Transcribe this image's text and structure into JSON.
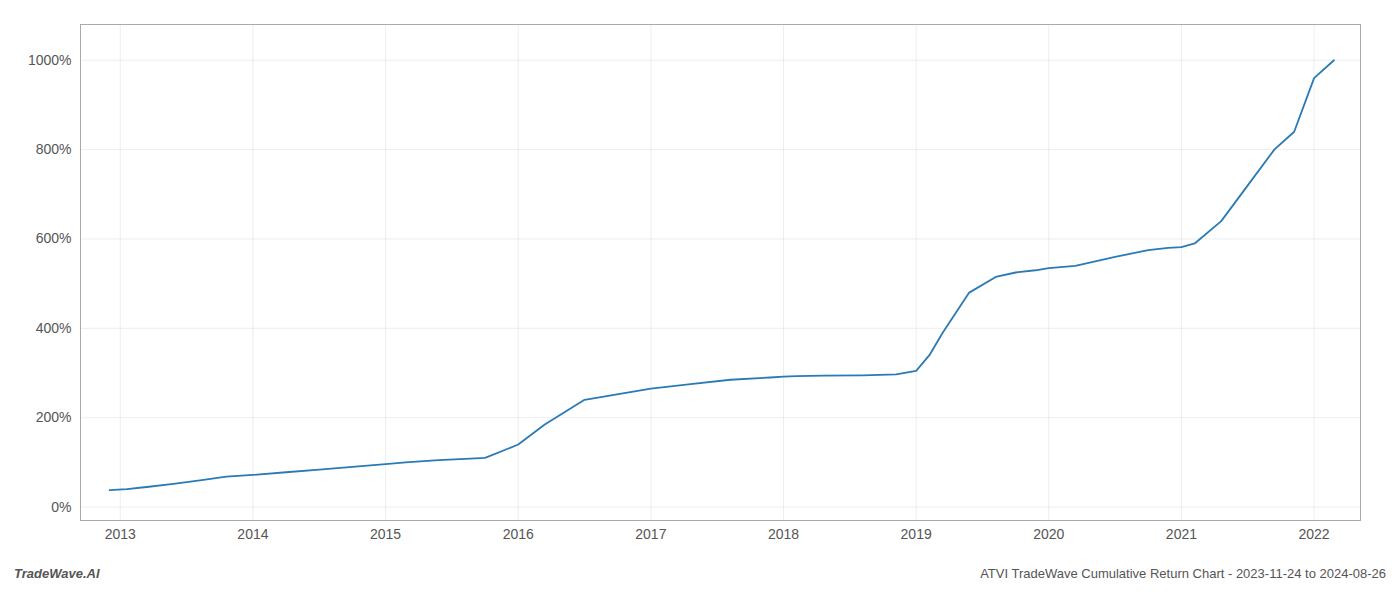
{
  "chart_data": {
    "type": "line",
    "x": [
      2012.92,
      2013.05,
      2013.2,
      2013.4,
      2013.6,
      2013.8,
      2014.0,
      2014.25,
      2014.5,
      2014.75,
      2015.0,
      2015.15,
      2015.4,
      2015.6,
      2015.75,
      2016.0,
      2016.2,
      2016.5,
      2016.8,
      2017.0,
      2017.3,
      2017.6,
      2017.9,
      2018.0,
      2018.1,
      2018.3,
      2018.6,
      2018.85,
      2019.0,
      2019.1,
      2019.2,
      2019.4,
      2019.6,
      2019.75,
      2019.9,
      2020.0,
      2020.2,
      2020.5,
      2020.75,
      2020.9,
      2021.0,
      2021.1,
      2021.3,
      2021.5,
      2021.7,
      2021.85,
      2022.0,
      2022.15
    ],
    "values": [
      38,
      40,
      45,
      52,
      60,
      68,
      72,
      78,
      84,
      90,
      96,
      100,
      105,
      108,
      110,
      140,
      185,
      240,
      255,
      265,
      275,
      285,
      290,
      292,
      293,
      294,
      295,
      297,
      305,
      340,
      390,
      480,
      515,
      525,
      530,
      535,
      540,
      560,
      575,
      580,
      582,
      590,
      640,
      720,
      800,
      840,
      960,
      1000
    ],
    "color": "#2a7ab5",
    "xlim": [
      2012.7,
      2022.35
    ],
    "xticks": [
      2013,
      2014,
      2015,
      2016,
      2017,
      2018,
      2019,
      2020,
      2021,
      2022
    ],
    "ylim": [
      -30,
      1080
    ],
    "yticks": [
      {
        "value": 0,
        "label": "0%"
      },
      {
        "value": 200,
        "label": "200%"
      },
      {
        "value": 400,
        "label": "400%"
      },
      {
        "value": 600,
        "label": "600%"
      },
      {
        "value": 800,
        "label": "800%"
      },
      {
        "value": 1000,
        "label": "1000%"
      }
    ],
    "grid": true,
    "annotations": [
      "TradeWave.AI",
      "ATVI TradeWave Cumulative Return Chart - 2023-11-24 to 2024-08-26"
    ]
  }
}
